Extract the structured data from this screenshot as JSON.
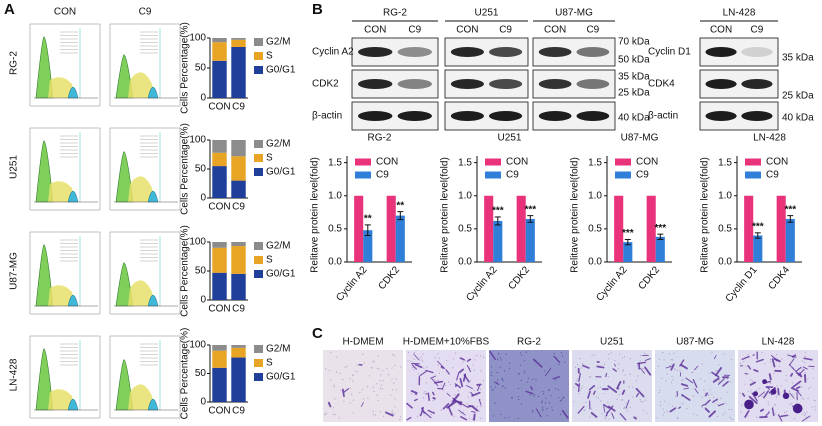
{
  "panels": {
    "a": "A",
    "b": "B",
    "c": "C"
  },
  "flow": {
    "conditions": [
      "CON",
      "C9"
    ],
    "cell_lines": [
      "RG-2",
      "U251",
      "U87-MG",
      "LN-428"
    ]
  },
  "blots": {
    "groups": [
      {
        "title": "RG-2",
        "lanes": [
          "CON",
          "C9"
        ]
      },
      {
        "title": "U251",
        "lanes": [
          "CON",
          "C9"
        ]
      },
      {
        "title": "U87-MG",
        "lanes": [
          "CON",
          "C9"
        ]
      },
      {
        "title": "LN-428",
        "lanes": [
          "CON",
          "C9"
        ]
      }
    ],
    "rows_left": [
      "Cyclin A2",
      "CDK2",
      "β-actin"
    ],
    "markers_left": [
      "70 kDa",
      "50 kDa",
      "35 kDa",
      "25 kDa",
      "40 kDa"
    ],
    "rows_right": [
      "Cyclin D1",
      "CDK4",
      "β-actin"
    ],
    "markers_right": [
      "35 kDa",
      "25 kDa",
      "40 kDa"
    ]
  },
  "invasion": {
    "labels": [
      "H-DMEM",
      "H-DMEM+10%FBS",
      "RG-2",
      "U251",
      "U87-MG",
      "LN-428"
    ]
  },
  "chart_data": [
    {
      "type": "stacked-bar",
      "ylabel": "Cells Percentage(%)",
      "categories": [
        "CON",
        "C9"
      ],
      "series": [
        {
          "name": "G0/G1",
          "color": "#1f3f9a",
          "values": [
            62,
            85
          ]
        },
        {
          "name": "S",
          "color": "#e8a424",
          "values": [
            31,
            12
          ]
        },
        {
          "name": "G2/M",
          "color": "#8c8c8c",
          "values": [
            7,
            3
          ]
        }
      ],
      "ylim": [
        0,
        100
      ],
      "yticks": [
        0,
        50,
        100
      ]
    },
    {
      "type": "stacked-bar",
      "ylabel": "Cells Percentage(%)",
      "categories": [
        "CON",
        "C9"
      ],
      "series": [
        {
          "name": "G0/G1",
          "color": "#1f3f9a",
          "values": [
            55,
            30
          ]
        },
        {
          "name": "S",
          "color": "#e8a424",
          "values": [
            23,
            42
          ]
        },
        {
          "name": "G2/M",
          "color": "#8c8c8c",
          "values": [
            22,
            28
          ]
        }
      ],
      "ylim": [
        0,
        100
      ],
      "yticks": [
        0,
        50,
        100
      ]
    },
    {
      "type": "stacked-bar",
      "ylabel": "Cells Percentage(%)",
      "categories": [
        "CON",
        "C9"
      ],
      "series": [
        {
          "name": "G0/G1",
          "color": "#1f3f9a",
          "values": [
            47,
            45
          ]
        },
        {
          "name": "S",
          "color": "#e8a424",
          "values": [
            43,
            48
          ]
        },
        {
          "name": "G2/M",
          "color": "#8c8c8c",
          "values": [
            10,
            7
          ]
        }
      ],
      "ylim": [
        0,
        100
      ],
      "yticks": [
        0,
        50,
        100
      ]
    },
    {
      "type": "stacked-bar",
      "ylabel": "Cells Percentage(%)",
      "categories": [
        "CON",
        "C9"
      ],
      "series": [
        {
          "name": "G0/G1",
          "color": "#1f3f9a",
          "values": [
            60,
            78
          ]
        },
        {
          "name": "S",
          "color": "#e8a424",
          "values": [
            30,
            17
          ]
        },
        {
          "name": "G2/M",
          "color": "#8c8c8c",
          "values": [
            10,
            5
          ]
        }
      ],
      "ylim": [
        0,
        100
      ],
      "yticks": [
        0,
        50,
        100
      ]
    },
    {
      "type": "bar",
      "title": "RG-2",
      "ylabel": "Relitave protein level(fold)",
      "categories": [
        "Cyclin A2",
        "CDK2"
      ],
      "series": [
        {
          "name": "CON",
          "color": "#e8337b",
          "values": [
            1,
            1
          ]
        },
        {
          "name": "C9",
          "color": "#2f7ed8",
          "values": [
            0.48,
            0.7
          ],
          "errors": [
            0.08,
            0.06
          ],
          "annotations": [
            "**",
            "**"
          ]
        }
      ],
      "ylim": [
        0,
        1.6
      ],
      "yticks": [
        {
          "value": 0,
          "label": "0.0"
        },
        {
          "value": 0.5,
          "label": "0.5"
        },
        {
          "value": 1,
          "label": "1.0"
        },
        {
          "value": 1.5,
          "label": "1.5"
        }
      ]
    },
    {
      "type": "bar",
      "title": "U251",
      "ylabel": "Relitave protein level(fold)",
      "categories": [
        "Cyclin A2",
        "CDK2"
      ],
      "series": [
        {
          "name": "CON",
          "color": "#e8337b",
          "values": [
            1,
            1
          ]
        },
        {
          "name": "C9",
          "color": "#2f7ed8",
          "values": [
            0.62,
            0.65
          ],
          "errors": [
            0.06,
            0.05
          ],
          "annotations": [
            "***",
            "***"
          ]
        }
      ],
      "ylim": [
        0,
        1.6
      ],
      "yticks": [
        {
          "value": 0,
          "label": "0.0"
        },
        {
          "value": 0.5,
          "label": "0.5"
        },
        {
          "value": 1,
          "label": "1.0"
        },
        {
          "value": 1.5,
          "label": "1.5"
        }
      ]
    },
    {
      "type": "bar",
      "title": "U87-MG",
      "ylabel": "Relitave protein level(fold)",
      "categories": [
        "Cyclin A2",
        "CDK2"
      ],
      "series": [
        {
          "name": "CON",
          "color": "#e8337b",
          "values": [
            1,
            1
          ]
        },
        {
          "name": "C9",
          "color": "#2f7ed8",
          "values": [
            0.3,
            0.38
          ],
          "errors": [
            0.04,
            0.04
          ],
          "annotations": [
            "***",
            "***"
          ]
        }
      ],
      "ylim": [
        0,
        1.6
      ],
      "yticks": [
        {
          "value": 0,
          "label": "0.0"
        },
        {
          "value": 0.5,
          "label": "0.5"
        },
        {
          "value": 1,
          "label": "1.0"
        },
        {
          "value": 1.5,
          "label": "1.5"
        }
      ]
    },
    {
      "type": "bar",
      "title": "LN-428",
      "ylabel": "Relitave protein level(fold)",
      "categories": [
        "Cyclin D1",
        "CDK4"
      ],
      "series": [
        {
          "name": "CON",
          "color": "#e8337b",
          "values": [
            1,
            1
          ]
        },
        {
          "name": "C9",
          "color": "#2f7ed8",
          "values": [
            0.4,
            0.65
          ],
          "errors": [
            0.04,
            0.05
          ],
          "annotations": [
            "***",
            "***"
          ]
        }
      ],
      "ylim": [
        0,
        1.6
      ],
      "yticks": [
        {
          "value": 0,
          "label": "0.0"
        },
        {
          "value": 0.5,
          "label": "0.5"
        },
        {
          "value": 1,
          "label": "1.0"
        },
        {
          "value": 1.5,
          "label": "1.5"
        }
      ]
    }
  ]
}
